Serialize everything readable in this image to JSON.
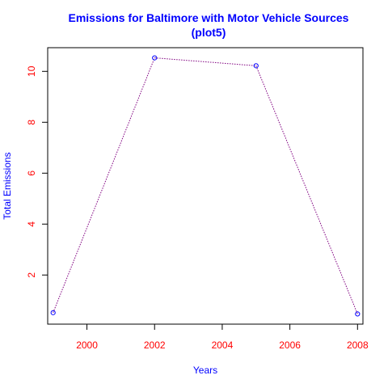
{
  "colors": {
    "title": "#0000ff",
    "axis_label": "#0000ff",
    "tick_label": "#ff0000",
    "line": "#800080",
    "points": "#0000ff",
    "frame": "#000000"
  },
  "chart_data": {
    "type": "line",
    "title_line1": "Emissions for Baltimore with Motor Vehicle Sources",
    "title_line2": "(plot5)",
    "xlabel": "Years",
    "ylabel": "Total Emissions",
    "x": [
      1999,
      2002,
      2005,
      2008
    ],
    "y": [
      0.52,
      10.53,
      10.22,
      0.47
    ],
    "xlim": [
      1998.84,
      2008.16
    ],
    "ylim": [
      0.07,
      10.93
    ],
    "xticks": [
      2000,
      2002,
      2004,
      2006,
      2008
    ],
    "yticks": [
      2,
      4,
      6,
      8,
      10
    ],
    "line_style": "dotted",
    "point_marker": "open-circle",
    "grid": false,
    "legend": "none"
  }
}
